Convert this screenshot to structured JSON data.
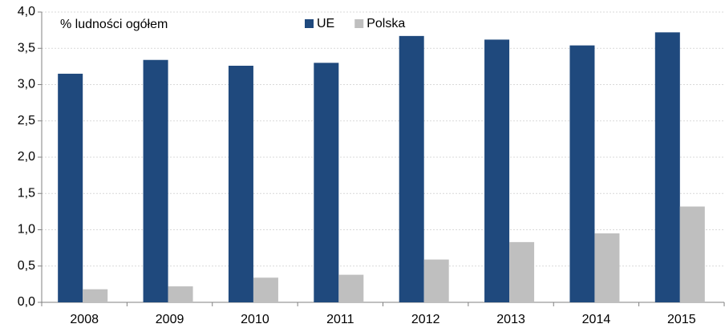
{
  "chart_data": {
    "type": "bar",
    "annotation": "% ludności ogółem",
    "categories": [
      "2008",
      "2009",
      "2010",
      "2011",
      "2012",
      "2013",
      "2014",
      "2015"
    ],
    "series": [
      {
        "name": "UE",
        "color": "#1f497d",
        "values": [
          3.15,
          3.34,
          3.26,
          3.3,
          3.67,
          3.62,
          3.54,
          3.72
        ]
      },
      {
        "name": "Polska",
        "color": "#bfbfbf",
        "values": [
          0.18,
          0.22,
          0.34,
          0.38,
          0.59,
          0.83,
          0.95,
          1.32
        ]
      }
    ],
    "ylim": [
      0,
      4
    ],
    "yticks": [
      {
        "value": 0,
        "label": "0,0"
      },
      {
        "value": 0.5,
        "label": "0,5"
      },
      {
        "value": 1,
        "label": "1,0"
      },
      {
        "value": 1.5,
        "label": "1,5"
      },
      {
        "value": 2,
        "label": "2,0"
      },
      {
        "value": 2.5,
        "label": "2,5"
      },
      {
        "value": 3,
        "label": "3,0"
      },
      {
        "value": 3.5,
        "label": "3,5"
      },
      {
        "value": 4,
        "label": "4,0"
      }
    ],
    "grid": true,
    "legend": "top"
  }
}
